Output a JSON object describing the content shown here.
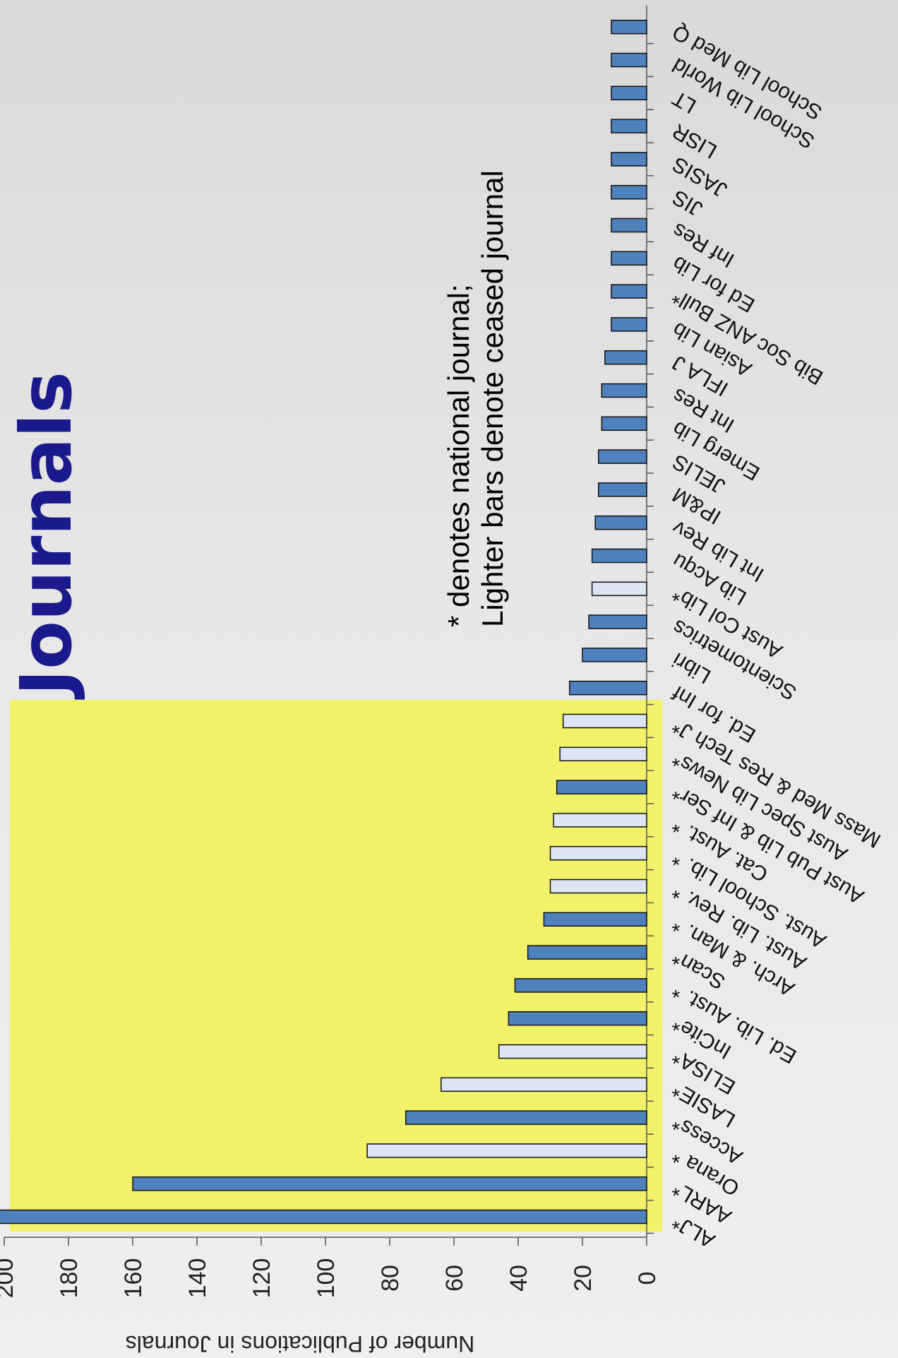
{
  "title": "Journals",
  "note_lines": [
    "* denotes national journal;",
    "Lighter bars denote ceased journal"
  ],
  "colors": {
    "active_bar": "#4f81bd",
    "ceased_bar": "#dce6f2",
    "highlight": "#f2f26a",
    "title": "#1a1a8c"
  },
  "chart_data": {
    "type": "bar",
    "orientation": "horizontal",
    "ylabel": "Number of Publications in Journals",
    "ylim": [
      0,
      200
    ],
    "ticks": [
      0,
      20,
      40,
      60,
      80,
      100,
      120,
      140,
      160,
      180,
      200
    ],
    "highlighted_first_n": 16,
    "categories": [
      "ALJ*",
      "AARL*",
      "Orana *",
      "Access*",
      "LASIE*",
      "ELISA*",
      "InCite*",
      "Ed. Lib. Aust. *",
      "Scan*",
      "Arch. & Man. *",
      "Aust. Lib. Rev. *",
      "Aust. School Lib. *",
      "Cat. Aust. *",
      "Aust Pub Lib & Inf Ser*",
      "Aust Spec Lib News*",
      "Mass Med & Res Tech J*",
      "Ed. for Inf",
      "Libri",
      "Scientometrics",
      "Aust Col Lib*",
      "Lib Acqu",
      "Int Lib Rev",
      "IP&M",
      "JELIS",
      "Emerg Lib",
      "Int Res",
      "IFLA J",
      "Asian Lib",
      "Bib Soc ANZ Bull*",
      "Ed for Lib",
      "Inf Res",
      "JIS",
      "JASIS",
      "LISR",
      "LT",
      "School Lib World",
      "School Lib Med Q"
    ],
    "values": [
      202,
      160,
      87,
      75,
      64,
      46,
      43,
      41,
      37,
      32,
      30,
      30,
      29,
      28,
      27,
      26,
      24,
      20,
      18,
      17,
      17,
      16,
      15,
      15,
      14,
      14,
      13,
      11,
      11,
      11,
      11,
      11,
      11,
      11,
      11,
      11,
      11
    ],
    "ceased": [
      false,
      false,
      true,
      false,
      true,
      true,
      false,
      false,
      false,
      false,
      true,
      true,
      true,
      false,
      true,
      true,
      false,
      false,
      false,
      true,
      false,
      false,
      false,
      false,
      false,
      false,
      false,
      false,
      false,
      false,
      false,
      false,
      false,
      false,
      false,
      false,
      false
    ]
  }
}
